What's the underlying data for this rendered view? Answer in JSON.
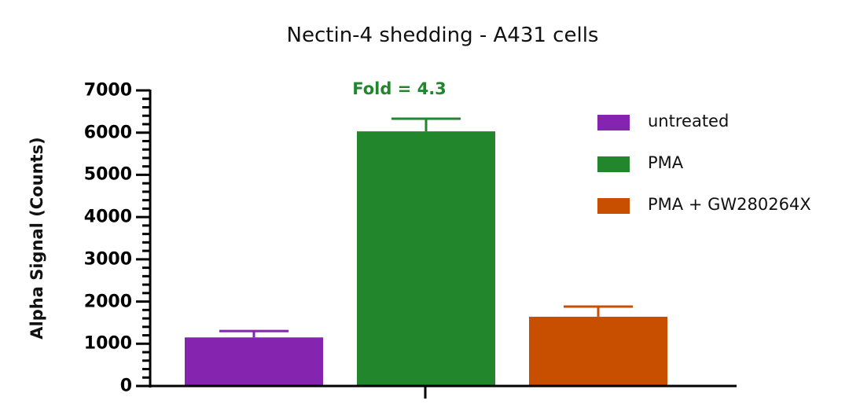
{
  "chart_data": {
    "type": "bar",
    "title": "Nectin-4 shedding - A431 cells",
    "xlabel": "",
    "ylabel": "Alpha Signal (Counts)",
    "ylim": [
      0,
      7000
    ],
    "yticks": [
      0,
      1000,
      2000,
      3000,
      4000,
      5000,
      6000,
      7000
    ],
    "categories": [
      "untreated",
      "PMA",
      "PMA + GW280264X"
    ],
    "values": [
      1150,
      6030,
      1640
    ],
    "error_upper": [
      1300,
      6330,
      1880
    ],
    "colors": [
      "#8524AE",
      "#22862D",
      "#C94F00"
    ],
    "annotations": [
      {
        "text": "Fold = 4.3",
        "color": "#22862D",
        "over_category": "PMA"
      }
    ],
    "legend_position": "right",
    "grid": false
  },
  "legend": [
    {
      "label": "untreated",
      "color": "#8524AE"
    },
    {
      "label": "PMA",
      "color": "#22862D"
    },
    {
      "label": "PMA + GW280264X",
      "color": "#C94F00"
    }
  ],
  "yticks_labels": [
    "0",
    "1000",
    "2000",
    "3000",
    "4000",
    "5000",
    "6000",
    "7000"
  ]
}
